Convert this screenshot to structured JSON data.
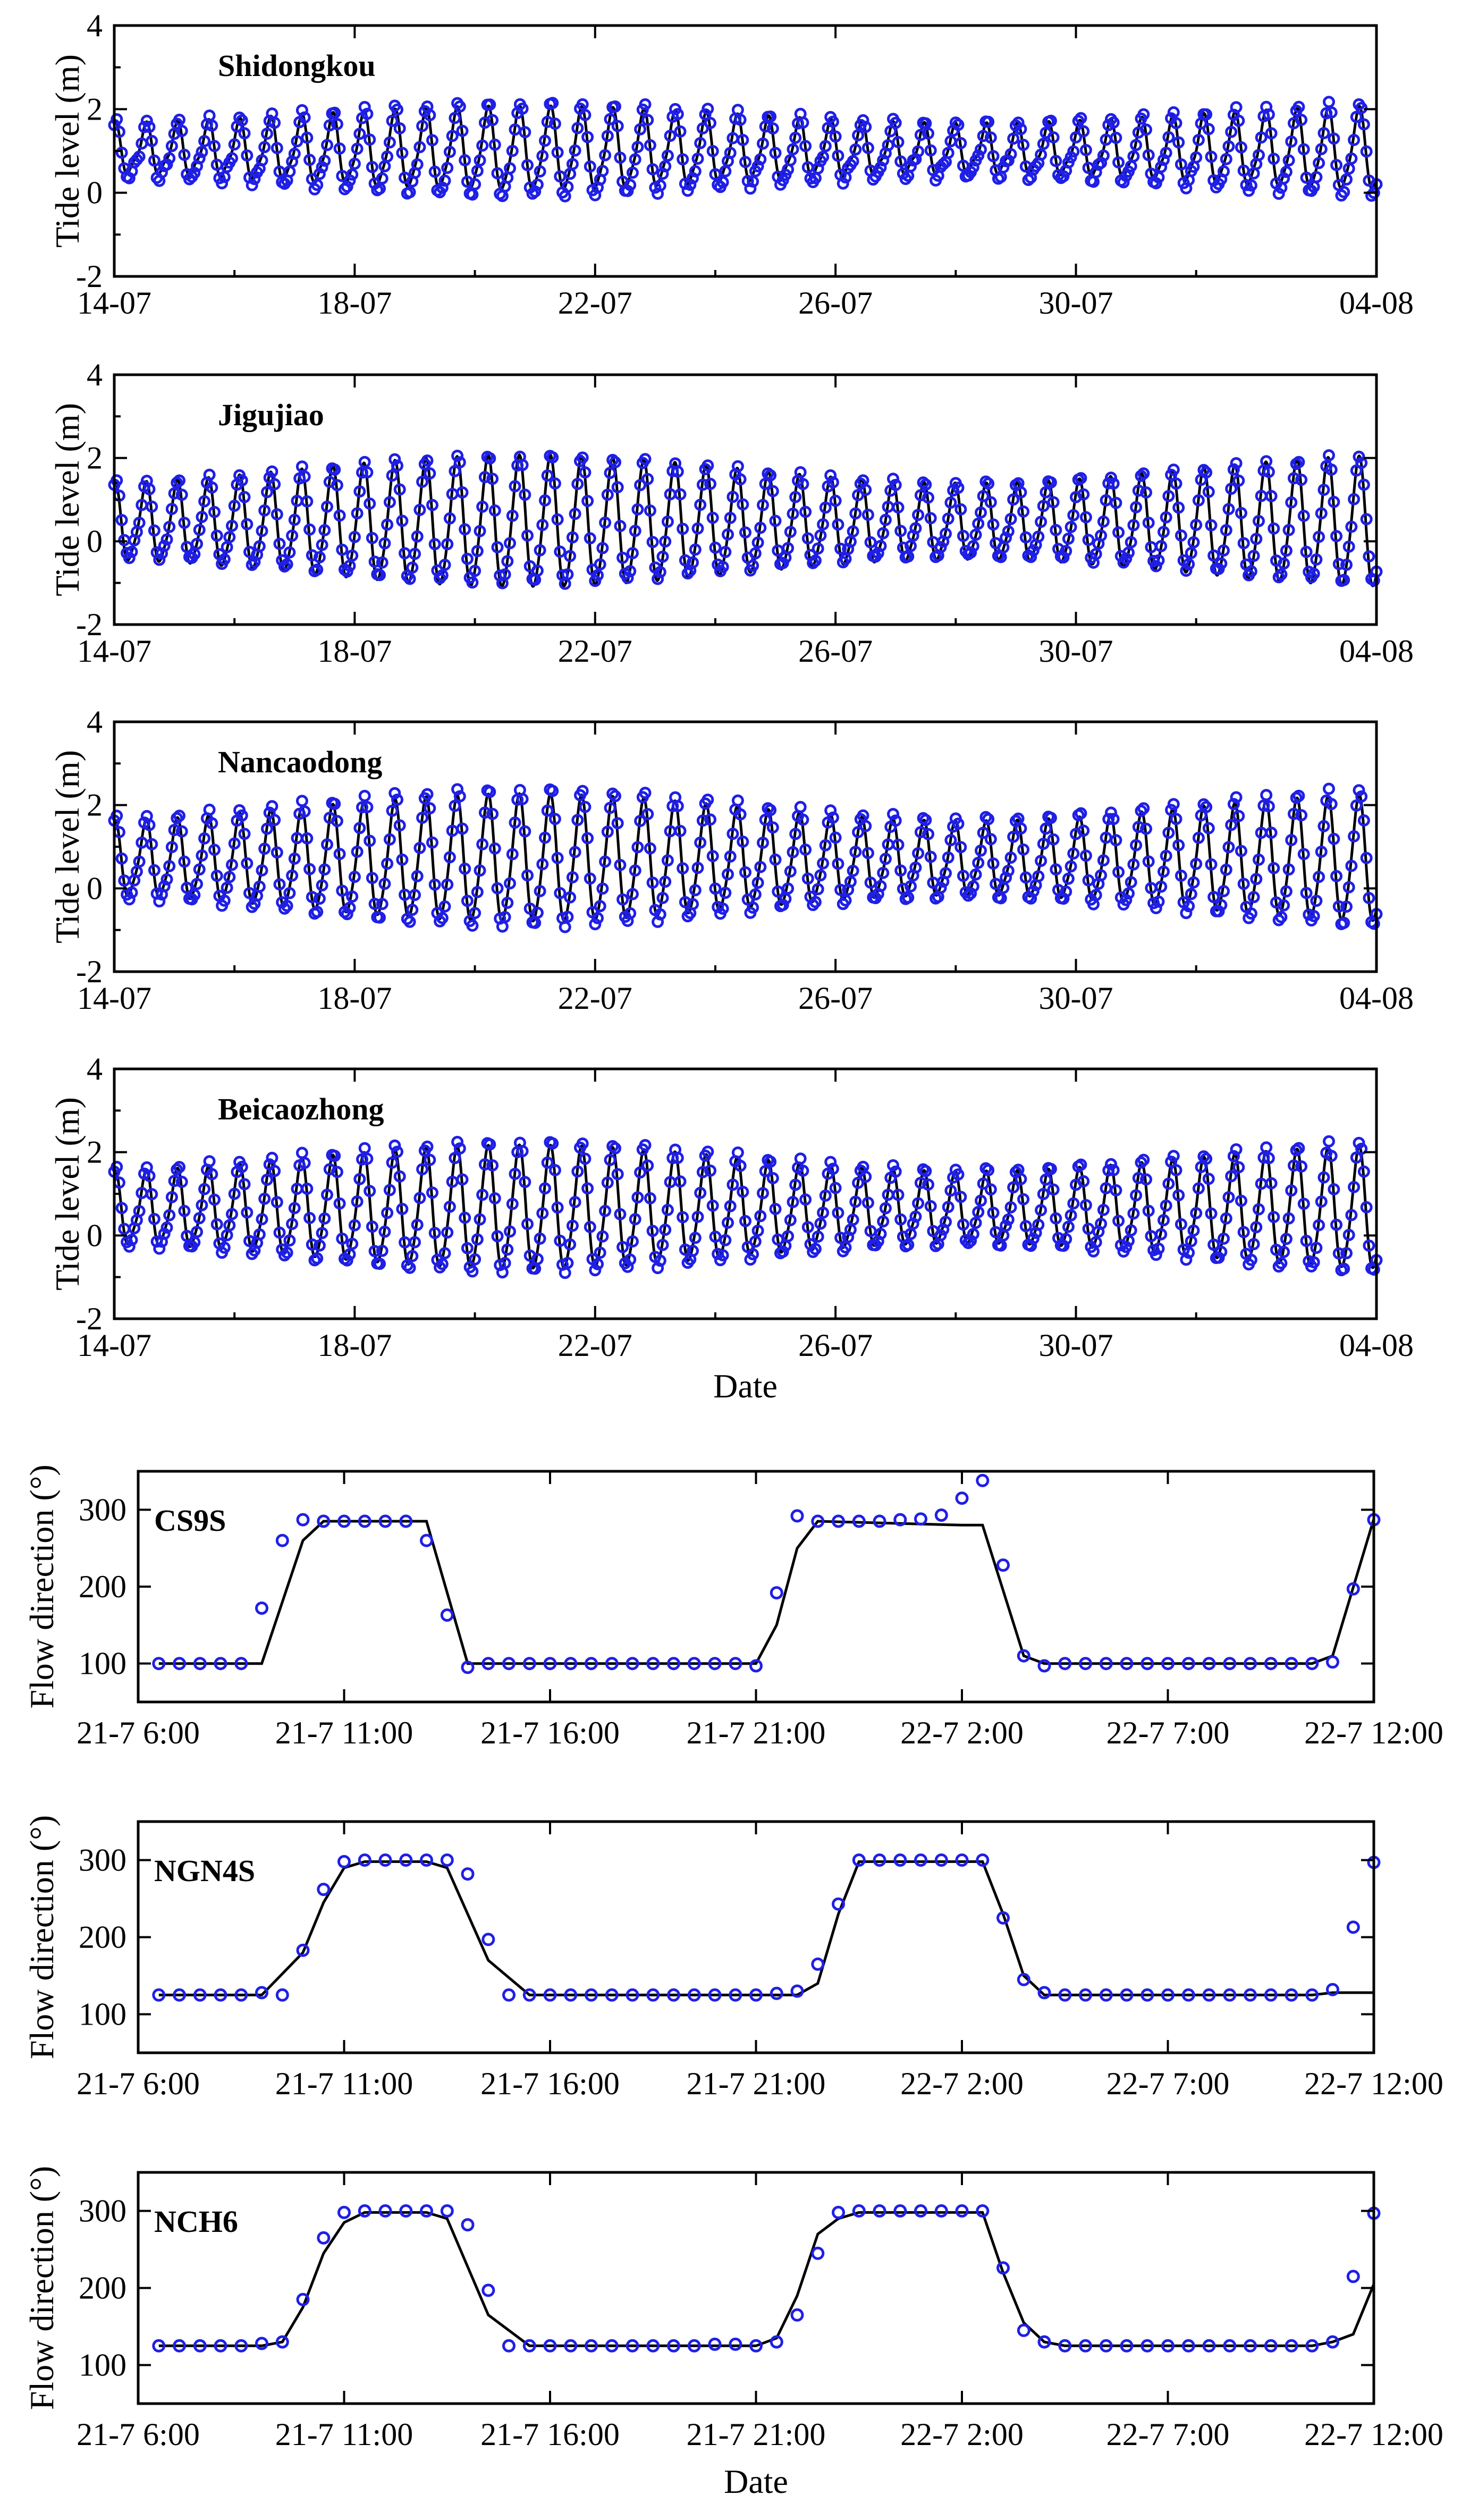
{
  "tide_panels": [
    {
      "station": "Shidongkou",
      "ylabel": "Tide level (m)",
      "yticks": [
        "-2",
        "0",
        "2",
        "4"
      ],
      "ylim": [
        -2,
        4
      ],
      "xticks": [
        "14-07",
        "18-07",
        "22-07",
        "26-07",
        "30-07",
        "04-08"
      ],
      "mean": 1.0,
      "amp": 0.95,
      "obs_amp_scale": 1.12,
      "obs_offset": -0.05,
      "obs_phase": 0.25
    },
    {
      "station": "Jigujiao",
      "ylabel": "Tide level (m)",
      "yticks": [
        "-2",
        "0",
        "2",
        "4"
      ],
      "ylim": [
        -2,
        4
      ],
      "xticks": [
        "14-07",
        "18-07",
        "22-07",
        "26-07",
        "30-07",
        "04-08"
      ],
      "mean": 0.4,
      "amp": 1.55,
      "obs_amp_scale": 0.97,
      "obs_offset": 0.05,
      "obs_phase": 0.12
    },
    {
      "station": "Nancaodong",
      "ylabel": "Tide level (m)",
      "yticks": [
        "-2",
        "0",
        "2",
        "4"
      ],
      "ylim": [
        -2,
        4
      ],
      "xticks": [
        "14-07",
        "18-07",
        "22-07",
        "26-07",
        "30-07",
        "04-08"
      ],
      "mean": 0.65,
      "amp": 1.5,
      "obs_amp_scale": 1.08,
      "obs_offset": 0.0,
      "obs_phase": 0.08
    },
    {
      "station": "Beicaozhong",
      "ylabel": "Tide level (m)",
      "yticks": [
        "-2",
        "0",
        "2",
        "4"
      ],
      "ylim": [
        -2,
        4
      ],
      "xticks": [
        "14-07",
        "18-07",
        "22-07",
        "26-07",
        "30-07",
        "04-08"
      ],
      "xlabel": "Date",
      "mean": 0.6,
      "amp": 1.45,
      "obs_amp_scale": 1.06,
      "obs_offset": 0.0,
      "obs_phase": 0.08
    }
  ],
  "chart_data": [
    {
      "type": "line",
      "station": "Shidongkou",
      "ylabel": "Tide level (m)",
      "ylim": [
        -2,
        4
      ],
      "x_dates": [
        "14-07",
        "18-07",
        "22-07",
        "26-07",
        "30-07",
        "04-08"
      ],
      "series": [
        {
          "kind": "line",
          "color": "#000000"
        },
        {
          "kind": "scatter",
          "color": "#1f1fe6"
        }
      ]
    },
    {
      "type": "line",
      "station": "Jigujiao",
      "ylabel": "Tide level (m)",
      "ylim": [
        -2,
        4
      ],
      "x_dates": [
        "14-07",
        "18-07",
        "22-07",
        "26-07",
        "30-07",
        "04-08"
      ],
      "series": [
        {
          "kind": "line",
          "color": "#000000"
        },
        {
          "kind": "scatter",
          "color": "#1f1fe6"
        }
      ]
    },
    {
      "type": "line",
      "station": "Nancaodong",
      "ylabel": "Tide level (m)",
      "ylim": [
        -2,
        4
      ],
      "x_dates": [
        "14-07",
        "18-07",
        "22-07",
        "26-07",
        "30-07",
        "04-08"
      ],
      "series": [
        {
          "kind": "line",
          "color": "#000000"
        },
        {
          "kind": "scatter",
          "color": "#1f1fe6"
        }
      ]
    },
    {
      "type": "line",
      "station": "Beicaozhong",
      "ylabel": "Tide level (m)",
      "xlabel": "Date",
      "ylim": [
        -2,
        4
      ],
      "x_dates": [
        "14-07",
        "18-07",
        "22-07",
        "26-07",
        "30-07",
        "04-08"
      ],
      "series": [
        {
          "kind": "line",
          "color": "#000000"
        },
        {
          "kind": "scatter",
          "color": "#1f1fe6"
        }
      ]
    },
    {
      "type": "line",
      "station": "CS9S",
      "ylabel": "Flow direction (°)",
      "ylim": [
        50,
        350
      ],
      "x_hours": [
        6,
        7,
        8,
        9,
        10,
        11,
        12,
        13,
        14,
        15,
        16,
        17,
        18,
        19,
        20,
        21,
        22,
        23,
        24,
        25,
        26,
        27,
        28,
        29,
        30,
        31,
        32,
        33,
        34,
        35
      ],
      "model": [
        100,
        100,
        100,
        100,
        100,
        260,
        285,
        285,
        285,
        285,
        285,
        100,
        100,
        100,
        100,
        100,
        100,
        100,
        285,
        285,
        285,
        285,
        280,
        280,
        100,
        100,
        100,
        100,
        100,
        100
      ],
      "observed": [
        [
          6.5,
          100
        ],
        [
          7,
          100
        ],
        [
          7.5,
          100
        ],
        [
          8,
          100
        ],
        [
          8.5,
          100
        ],
        [
          9,
          172
        ],
        [
          9.5,
          260
        ],
        [
          10,
          287
        ],
        [
          10.5,
          285
        ],
        [
          11,
          285
        ],
        [
          11.5,
          285
        ],
        [
          12,
          285
        ],
        [
          12.5,
          285
        ],
        [
          13,
          260
        ],
        [
          13.5,
          163
        ],
        [
          14,
          95
        ],
        [
          14.5,
          100
        ],
        [
          15,
          100
        ],
        [
          15.5,
          100
        ],
        [
          16,
          100
        ],
        [
          16.5,
          100
        ],
        [
          17,
          100
        ],
        [
          17.5,
          100
        ],
        [
          18,
          100
        ],
        [
          18.5,
          100
        ],
        [
          19,
          100
        ],
        [
          19.5,
          100
        ],
        [
          20,
          100
        ],
        [
          20.5,
          100
        ],
        [
          21,
          97
        ],
        [
          21.5,
          192
        ],
        [
          22,
          292
        ],
        [
          22.5,
          285
        ],
        [
          23,
          285
        ],
        [
          23.5,
          285
        ],
        [
          24,
          285
        ],
        [
          24.5,
          287
        ],
        [
          25,
          288
        ],
        [
          25.5,
          293
        ],
        [
          26,
          315
        ],
        [
          26.5,
          338
        ],
        [
          27,
          228
        ],
        [
          27.5,
          110
        ],
        [
          28,
          97
        ],
        [
          28.5,
          100
        ],
        [
          29,
          100
        ],
        [
          29.5,
          100
        ],
        [
          30,
          100
        ],
        [
          30.5,
          100
        ],
        [
          31,
          100
        ],
        [
          31.5,
          100
        ],
        [
          32,
          100
        ],
        [
          32.5,
          100
        ],
        [
          33,
          100
        ],
        [
          33.5,
          100
        ],
        [
          34,
          100
        ],
        [
          34.5,
          100
        ],
        [
          35,
          102
        ],
        [
          35.5,
          197
        ],
        [
          36,
          287
        ]
      ]
    },
    {
      "type": "line",
      "station": "NGN4S",
      "ylabel": "Flow direction (°)",
      "ylim": [
        50,
        350
      ],
      "observed": [
        [
          6.5,
          125
        ],
        [
          7,
          125
        ],
        [
          7.5,
          125
        ],
        [
          8,
          125
        ],
        [
          8.5,
          125
        ],
        [
          9,
          128
        ],
        [
          9.5,
          125
        ],
        [
          10,
          183
        ],
        [
          10.5,
          262
        ],
        [
          11,
          298
        ],
        [
          11.5,
          300
        ],
        [
          12,
          300
        ],
        [
          12.5,
          300
        ],
        [
          13,
          300
        ],
        [
          13.5,
          300
        ],
        [
          14,
          282
        ],
        [
          14.5,
          197
        ],
        [
          15,
          125
        ],
        [
          15.5,
          125
        ],
        [
          16,
          125
        ],
        [
          16.5,
          125
        ],
        [
          17,
          125
        ],
        [
          17.5,
          125
        ],
        [
          18,
          125
        ],
        [
          18.5,
          125
        ],
        [
          19,
          125
        ],
        [
          19.5,
          125
        ],
        [
          20,
          125
        ],
        [
          20.5,
          125
        ],
        [
          21,
          125
        ],
        [
          21.5,
          127
        ],
        [
          22,
          130
        ],
        [
          22.5,
          165
        ],
        [
          23,
          243
        ],
        [
          23.5,
          300
        ],
        [
          24,
          300
        ],
        [
          24.5,
          300
        ],
        [
          25,
          300
        ],
        [
          25.5,
          300
        ],
        [
          26,
          300
        ],
        [
          26.5,
          300
        ],
        [
          27,
          225
        ],
        [
          27.5,
          145
        ],
        [
          28,
          128
        ],
        [
          28.5,
          125
        ],
        [
          29,
          125
        ],
        [
          29.5,
          125
        ],
        [
          30,
          125
        ],
        [
          30.5,
          125
        ],
        [
          31,
          125
        ],
        [
          31.5,
          125
        ],
        [
          32,
          125
        ],
        [
          32.5,
          125
        ],
        [
          33,
          125
        ],
        [
          33.5,
          125
        ],
        [
          34,
          125
        ],
        [
          34.5,
          125
        ],
        [
          35,
          132
        ],
        [
          35.5,
          213
        ],
        [
          36,
          297
        ]
      ]
    },
    {
      "type": "line",
      "station": "NCH6",
      "ylabel": "Flow direction (°)",
      "xlabel": "Date",
      "ylim": [
        50,
        350
      ],
      "observed": [
        [
          6.5,
          125
        ],
        [
          7,
          125
        ],
        [
          7.5,
          125
        ],
        [
          8,
          125
        ],
        [
          8.5,
          125
        ],
        [
          9,
          128
        ],
        [
          9.5,
          130
        ],
        [
          10,
          185
        ],
        [
          10.5,
          265
        ],
        [
          11,
          298
        ],
        [
          11.5,
          300
        ],
        [
          12,
          300
        ],
        [
          12.5,
          300
        ],
        [
          13,
          300
        ],
        [
          13.5,
          300
        ],
        [
          14,
          282
        ],
        [
          14.5,
          197
        ],
        [
          15,
          125
        ],
        [
          15.5,
          125
        ],
        [
          16,
          125
        ],
        [
          16.5,
          125
        ],
        [
          17,
          125
        ],
        [
          17.5,
          125
        ],
        [
          18,
          125
        ],
        [
          18.5,
          125
        ],
        [
          19,
          125
        ],
        [
          19.5,
          125
        ],
        [
          20,
          127
        ],
        [
          20.5,
          127
        ],
        [
          21,
          125
        ],
        [
          21.5,
          130
        ],
        [
          22,
          165
        ],
        [
          22.5,
          245
        ],
        [
          23,
          298
        ],
        [
          23.5,
          300
        ],
        [
          24,
          300
        ],
        [
          24.5,
          300
        ],
        [
          25,
          300
        ],
        [
          25.5,
          300
        ],
        [
          26,
          300
        ],
        [
          26.5,
          300
        ],
        [
          27,
          226
        ],
        [
          27.5,
          145
        ],
        [
          28,
          130
        ],
        [
          28.5,
          125
        ],
        [
          29,
          125
        ],
        [
          29.5,
          125
        ],
        [
          30,
          125
        ],
        [
          30.5,
          125
        ],
        [
          31,
          125
        ],
        [
          31.5,
          125
        ],
        [
          32,
          125
        ],
        [
          32.5,
          125
        ],
        [
          33,
          125
        ],
        [
          33.5,
          125
        ],
        [
          34,
          125
        ],
        [
          34.5,
          125
        ],
        [
          35,
          130
        ],
        [
          35.5,
          215
        ],
        [
          36,
          297
        ]
      ]
    }
  ],
  "flow_panels": [
    {
      "station": "CS9S",
      "ylabel": "Flow direction (°)",
      "yticks": [
        "100",
        "200",
        "300"
      ],
      "xticks": [
        "21-7 6:00",
        "21-7 11:00",
        "21-7 16:00",
        "21-7 21:00",
        "22-7 2:00",
        "22-7 7:00",
        "22-7 12:00"
      ]
    },
    {
      "station": "NGN4S",
      "ylabel": "Flow direction (°)",
      "yticks": [
        "100",
        "200",
        "300"
      ],
      "xticks": [
        "21-7 6:00",
        "21-7 11:00",
        "21-7 16:00",
        "21-7 21:00",
        "22-7 2:00",
        "22-7 7:00",
        "22-7 12:00"
      ]
    },
    {
      "station": "NCH6",
      "ylabel": "Flow direction (°)",
      "yticks": [
        "100",
        "200",
        "300"
      ],
      "xticks": [
        "21-7 6:00",
        "21-7 11:00",
        "21-7 16:00",
        "21-7 21:00",
        "22-7 2:00",
        "22-7 7:00",
        "22-7 12:00"
      ],
      "xlabel": "Date"
    }
  ]
}
